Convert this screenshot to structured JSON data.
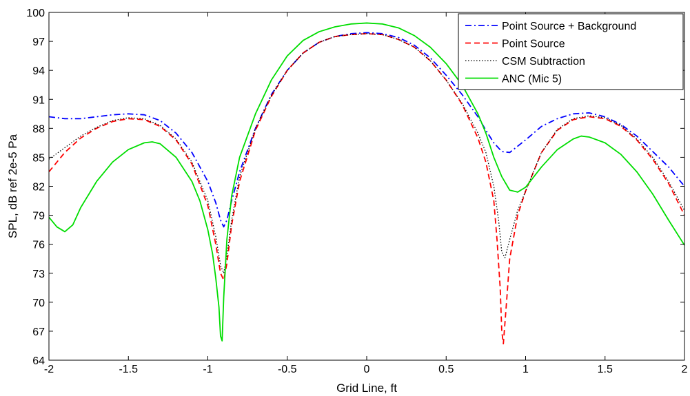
{
  "chart_data": {
    "type": "line",
    "title": "",
    "xlabel": "Grid Line, ft",
    "ylabel": "SPL, dB ref 2e-5 Pa",
    "xlim": [
      -2,
      2
    ],
    "ylim": [
      64,
      100
    ],
    "xticks": [
      -2,
      -1.5,
      -1,
      -0.5,
      0,
      0.5,
      1,
      1.5,
      2
    ],
    "xtick_labels": [
      "-2",
      "-1.5",
      "-1",
      "-0.5",
      "0",
      "0.5",
      "1",
      "1.5",
      "2"
    ],
    "yticks": [
      64,
      67,
      70,
      73,
      76,
      79,
      82,
      85,
      88,
      91,
      94,
      97,
      100
    ],
    "ytick_labels": [
      "64",
      "67",
      "70",
      "73",
      "76",
      "79",
      "82",
      "85",
      "88",
      "91",
      "94",
      "97",
      "100"
    ],
    "grid": false,
    "legend_position": "top-right",
    "series": [
      {
        "name": "Point Source + Background",
        "color": "#0000ff",
        "dash": "dash-dot",
        "x": [
          -2,
          -1.9,
          -1.8,
          -1.7,
          -1.6,
          -1.5,
          -1.4,
          -1.3,
          -1.2,
          -1.1,
          -1.0,
          -0.95,
          -0.92,
          -0.9,
          -0.88,
          -0.85,
          -0.8,
          -0.7,
          -0.6,
          -0.5,
          -0.4,
          -0.3,
          -0.2,
          -0.1,
          0,
          0.1,
          0.2,
          0.3,
          0.4,
          0.5,
          0.6,
          0.7,
          0.75,
          0.8,
          0.85,
          0.9,
          1.0,
          1.1,
          1.2,
          1.3,
          1.4,
          1.5,
          1.6,
          1.7,
          1.8,
          1.9,
          2.0
        ],
        "y": [
          89.2,
          89.0,
          89.0,
          89.2,
          89.4,
          89.5,
          89.4,
          88.8,
          87.5,
          85.5,
          82.5,
          80.3,
          78.5,
          77.8,
          78.5,
          80.5,
          83.5,
          88.0,
          91.5,
          94.0,
          95.8,
          96.9,
          97.5,
          97.8,
          97.9,
          97.8,
          97.4,
          96.6,
          95.3,
          93.5,
          91.5,
          89.2,
          87.8,
          86.5,
          85.6,
          85.5,
          86.8,
          88.2,
          89.0,
          89.5,
          89.6,
          89.2,
          88.4,
          87.2,
          85.6,
          84.0,
          82.0
        ]
      },
      {
        "name": "Point Source",
        "color": "#ff0000",
        "dash": "dashed",
        "x": [
          -2,
          -1.9,
          -1.8,
          -1.7,
          -1.6,
          -1.5,
          -1.4,
          -1.3,
          -1.2,
          -1.1,
          -1.0,
          -0.95,
          -0.92,
          -0.9,
          -0.88,
          -0.85,
          -0.8,
          -0.7,
          -0.6,
          -0.5,
          -0.4,
          -0.3,
          -0.2,
          -0.1,
          0,
          0.1,
          0.2,
          0.3,
          0.4,
          0.5,
          0.6,
          0.7,
          0.75,
          0.8,
          0.82,
          0.84,
          0.85,
          0.86,
          0.88,
          0.9,
          0.95,
          1.0,
          1.1,
          1.2,
          1.3,
          1.4,
          1.5,
          1.6,
          1.7,
          1.8,
          1.9,
          2.0
        ],
        "y": [
          83.5,
          85.5,
          87.0,
          88.0,
          88.7,
          89.0,
          88.9,
          88.2,
          86.8,
          84.3,
          80.0,
          76.0,
          73.0,
          72.3,
          74.0,
          78.0,
          82.5,
          87.8,
          91.3,
          94.0,
          95.8,
          96.9,
          97.5,
          97.7,
          97.8,
          97.7,
          97.2,
          96.4,
          95.0,
          93.0,
          90.5,
          87.0,
          84.5,
          80.5,
          76.5,
          71.5,
          67.0,
          65.7,
          70.0,
          74.5,
          79.0,
          81.5,
          85.5,
          87.8,
          88.9,
          89.2,
          89.0,
          88.2,
          86.8,
          84.8,
          82.3,
          79.0
        ]
      },
      {
        "name": "CSM Subtraction",
        "color": "#000000",
        "dash": "dotted",
        "x": [
          -2,
          -1.9,
          -1.8,
          -1.7,
          -1.6,
          -1.5,
          -1.4,
          -1.3,
          -1.2,
          -1.1,
          -1.0,
          -0.95,
          -0.92,
          -0.9,
          -0.88,
          -0.85,
          -0.8,
          -0.7,
          -0.6,
          -0.5,
          -0.4,
          -0.3,
          -0.2,
          -0.1,
          0,
          0.1,
          0.2,
          0.3,
          0.4,
          0.5,
          0.6,
          0.7,
          0.75,
          0.8,
          0.83,
          0.85,
          0.87,
          0.9,
          0.95,
          1.0,
          1.1,
          1.2,
          1.3,
          1.4,
          1.5,
          1.6,
          1.7,
          1.8,
          1.9,
          2.0
        ],
        "y": [
          84.8,
          86.0,
          87.2,
          88.1,
          88.8,
          89.1,
          89.0,
          88.3,
          86.9,
          84.5,
          80.5,
          76.8,
          73.8,
          73.0,
          74.8,
          78.5,
          83.0,
          88.0,
          91.4,
          94.0,
          95.8,
          96.9,
          97.5,
          97.7,
          97.8,
          97.7,
          97.2,
          96.4,
          95.0,
          93.0,
          90.6,
          87.5,
          85.5,
          82.0,
          78.5,
          75.2,
          74.6,
          76.5,
          79.5,
          81.5,
          85.5,
          87.9,
          89.0,
          89.3,
          89.1,
          88.3,
          86.9,
          85.0,
          82.5,
          79.5
        ]
      },
      {
        "name": "ANC (Mic 5)",
        "color": "#00dd00",
        "dash": "solid",
        "x": [
          -2,
          -1.95,
          -1.9,
          -1.85,
          -1.8,
          -1.7,
          -1.6,
          -1.5,
          -1.4,
          -1.35,
          -1.3,
          -1.2,
          -1.1,
          -1.05,
          -1.0,
          -0.97,
          -0.95,
          -0.93,
          -0.92,
          -0.91,
          -0.9,
          -0.88,
          -0.85,
          -0.8,
          -0.7,
          -0.6,
          -0.5,
          -0.4,
          -0.3,
          -0.2,
          -0.1,
          0,
          0.1,
          0.2,
          0.3,
          0.4,
          0.5,
          0.6,
          0.7,
          0.75,
          0.8,
          0.85,
          0.9,
          0.95,
          1.0,
          1.1,
          1.2,
          1.3,
          1.35,
          1.4,
          1.5,
          1.6,
          1.7,
          1.8,
          1.9,
          2.0
        ],
        "y": [
          78.8,
          77.8,
          77.3,
          78.0,
          79.8,
          82.5,
          84.5,
          85.8,
          86.5,
          86.6,
          86.4,
          85.0,
          82.5,
          80.5,
          77.5,
          75.0,
          72.5,
          69.5,
          66.5,
          66.0,
          70.5,
          76.5,
          81.0,
          85.0,
          89.5,
          93.0,
          95.5,
          97.1,
          98.0,
          98.5,
          98.8,
          98.9,
          98.8,
          98.4,
          97.6,
          96.4,
          94.7,
          92.5,
          89.5,
          87.5,
          85.0,
          83.0,
          81.6,
          81.4,
          81.9,
          84.0,
          85.8,
          86.9,
          87.2,
          87.1,
          86.5,
          85.3,
          83.5,
          81.2,
          78.5,
          75.9
        ]
      }
    ]
  }
}
